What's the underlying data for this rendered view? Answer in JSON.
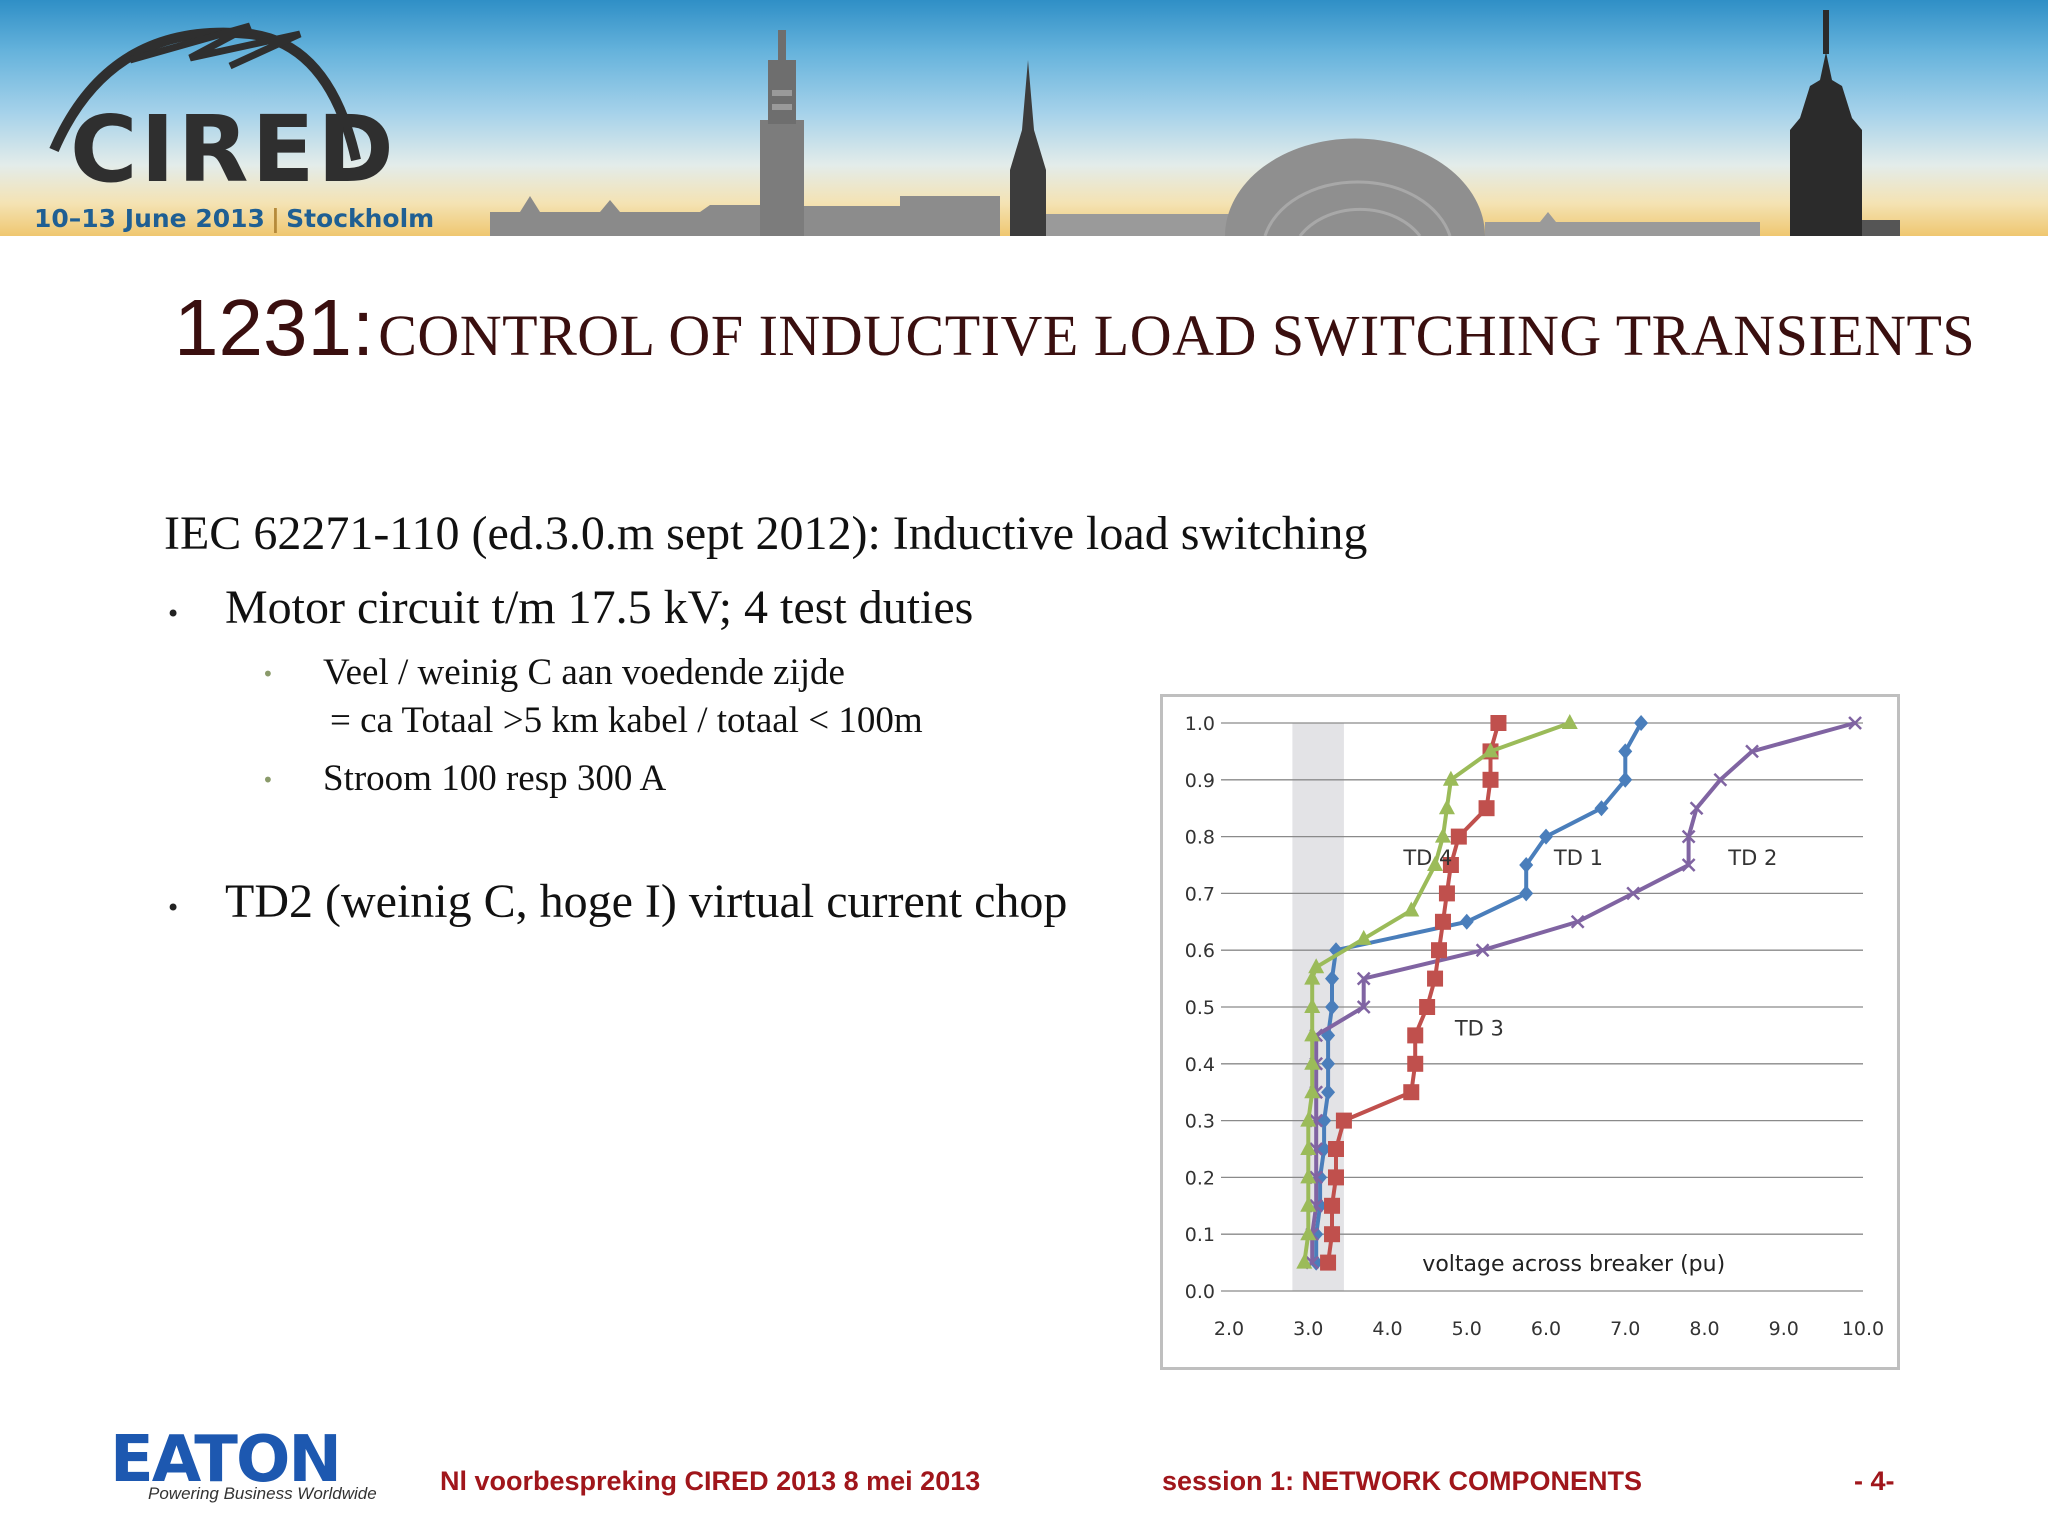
{
  "banner": {
    "logo": "CIRED",
    "dates": "10–13 June 2013",
    "city": "Stockholm",
    "colors": {
      "sky_top": "#2f8fc6",
      "sky_bottom": "#efc770",
      "logo_blue": "#1f5f93"
    }
  },
  "slide": {
    "title_number": "1231:",
    "title_text": "CONTROL OF INDUCTIVE LOAD SWITCHING TRANSIENTS",
    "intro": "IEC 62271-110 (ed.3.0.m sept 2012): Inductive load switching",
    "bullet1": "Motor circuit t/m 17.5 kV;  4 test duties",
    "sub1_line1": "Veel / weinig C aan voedende zijde",
    "sub1_line2": "= ca Totaal >5 km kabel / totaal < 100m",
    "sub2": "Stroom 100 resp 300 A",
    "bullet2": "TD2 (weinig C, hoge I) virtual current chop"
  },
  "chart_data": {
    "type": "line",
    "xlabel": "voltage across breaker (pu)",
    "ylabel": "",
    "xlim": [
      2.0,
      10.0
    ],
    "ylim": [
      0.0,
      1.0
    ],
    "x_ticks": [
      "2.0",
      "3.0",
      "4.0",
      "5.0",
      "6.0",
      "7.0",
      "8.0",
      "9.0",
      "10.0"
    ],
    "y_ticks": [
      "0.0",
      "0.1",
      "0.2",
      "0.3",
      "0.4",
      "0.5",
      "0.6",
      "0.7",
      "0.8",
      "0.9",
      "1.0"
    ],
    "grid": "horizontal",
    "shaded_band_x": [
      2.8,
      3.45
    ],
    "series": [
      {
        "name": "TD 1",
        "color": "#4a7ebb",
        "marker": "diamond",
        "label_at": [
          6.1,
          0.75
        ],
        "points": [
          [
            3.1,
            0.05
          ],
          [
            3.1,
            0.1
          ],
          [
            3.15,
            0.15
          ],
          [
            3.15,
            0.2
          ],
          [
            3.2,
            0.25
          ],
          [
            3.2,
            0.3
          ],
          [
            3.25,
            0.35
          ],
          [
            3.25,
            0.4
          ],
          [
            3.25,
            0.45
          ],
          [
            3.3,
            0.5
          ],
          [
            3.3,
            0.55
          ],
          [
            3.35,
            0.6
          ],
          [
            5.0,
            0.65
          ],
          [
            5.75,
            0.7
          ],
          [
            5.75,
            0.75
          ],
          [
            6.0,
            0.8
          ],
          [
            6.7,
            0.85
          ],
          [
            7.0,
            0.9
          ],
          [
            7.0,
            0.95
          ],
          [
            7.2,
            1.0
          ]
        ]
      },
      {
        "name": "TD 2",
        "color": "#8064a2",
        "marker": "x",
        "label_at": [
          8.3,
          0.75
        ],
        "points": [
          [
            3.05,
            0.05
          ],
          [
            3.05,
            0.1
          ],
          [
            3.1,
            0.15
          ],
          [
            3.1,
            0.2
          ],
          [
            3.1,
            0.25
          ],
          [
            3.1,
            0.3
          ],
          [
            3.1,
            0.35
          ],
          [
            3.1,
            0.4
          ],
          [
            3.1,
            0.45
          ],
          [
            3.7,
            0.5
          ],
          [
            3.7,
            0.55
          ],
          [
            5.2,
            0.6
          ],
          [
            6.4,
            0.65
          ],
          [
            7.1,
            0.7
          ],
          [
            7.8,
            0.75
          ],
          [
            7.8,
            0.8
          ],
          [
            7.9,
            0.85
          ],
          [
            8.2,
            0.9
          ],
          [
            8.6,
            0.95
          ],
          [
            9.9,
            1.0
          ]
        ]
      },
      {
        "name": "TD 3",
        "color": "#c0504d",
        "marker": "square",
        "label_at": [
          4.85,
          0.45
        ],
        "points": [
          [
            3.25,
            0.05
          ],
          [
            3.3,
            0.1
          ],
          [
            3.3,
            0.15
          ],
          [
            3.35,
            0.2
          ],
          [
            3.35,
            0.25
          ],
          [
            3.45,
            0.3
          ],
          [
            4.3,
            0.35
          ],
          [
            4.35,
            0.4
          ],
          [
            4.35,
            0.45
          ],
          [
            4.5,
            0.5
          ],
          [
            4.6,
            0.55
          ],
          [
            4.65,
            0.6
          ],
          [
            4.7,
            0.65
          ],
          [
            4.75,
            0.7
          ],
          [
            4.8,
            0.75
          ],
          [
            4.9,
            0.8
          ],
          [
            5.25,
            0.85
          ],
          [
            5.3,
            0.9
          ],
          [
            5.3,
            0.95
          ],
          [
            5.4,
            1.0
          ]
        ]
      },
      {
        "name": "TD 4",
        "color": "#9bbb59",
        "marker": "triangle",
        "label_at": [
          4.2,
          0.75
        ],
        "points": [
          [
            2.95,
            0.05
          ],
          [
            3.0,
            0.1
          ],
          [
            3.0,
            0.15
          ],
          [
            3.0,
            0.2
          ],
          [
            3.0,
            0.25
          ],
          [
            3.0,
            0.3
          ],
          [
            3.05,
            0.35
          ],
          [
            3.05,
            0.4
          ],
          [
            3.05,
            0.45
          ],
          [
            3.05,
            0.5
          ],
          [
            3.05,
            0.55
          ],
          [
            3.1,
            0.57
          ],
          [
            3.7,
            0.62
          ],
          [
            4.3,
            0.67
          ],
          [
            4.6,
            0.75
          ],
          [
            4.7,
            0.8
          ],
          [
            4.75,
            0.85
          ],
          [
            4.8,
            0.9
          ],
          [
            5.3,
            0.95
          ],
          [
            6.3,
            1.0
          ]
        ]
      }
    ]
  },
  "footer": {
    "company": "EATON",
    "tagline": "Powering Business Worldwide",
    "meeting": "Nl voorbespreking CIRED 2013  8 mei 2013",
    "session": "session 1: NETWORK COMPONENTS",
    "page": "- 4-"
  }
}
